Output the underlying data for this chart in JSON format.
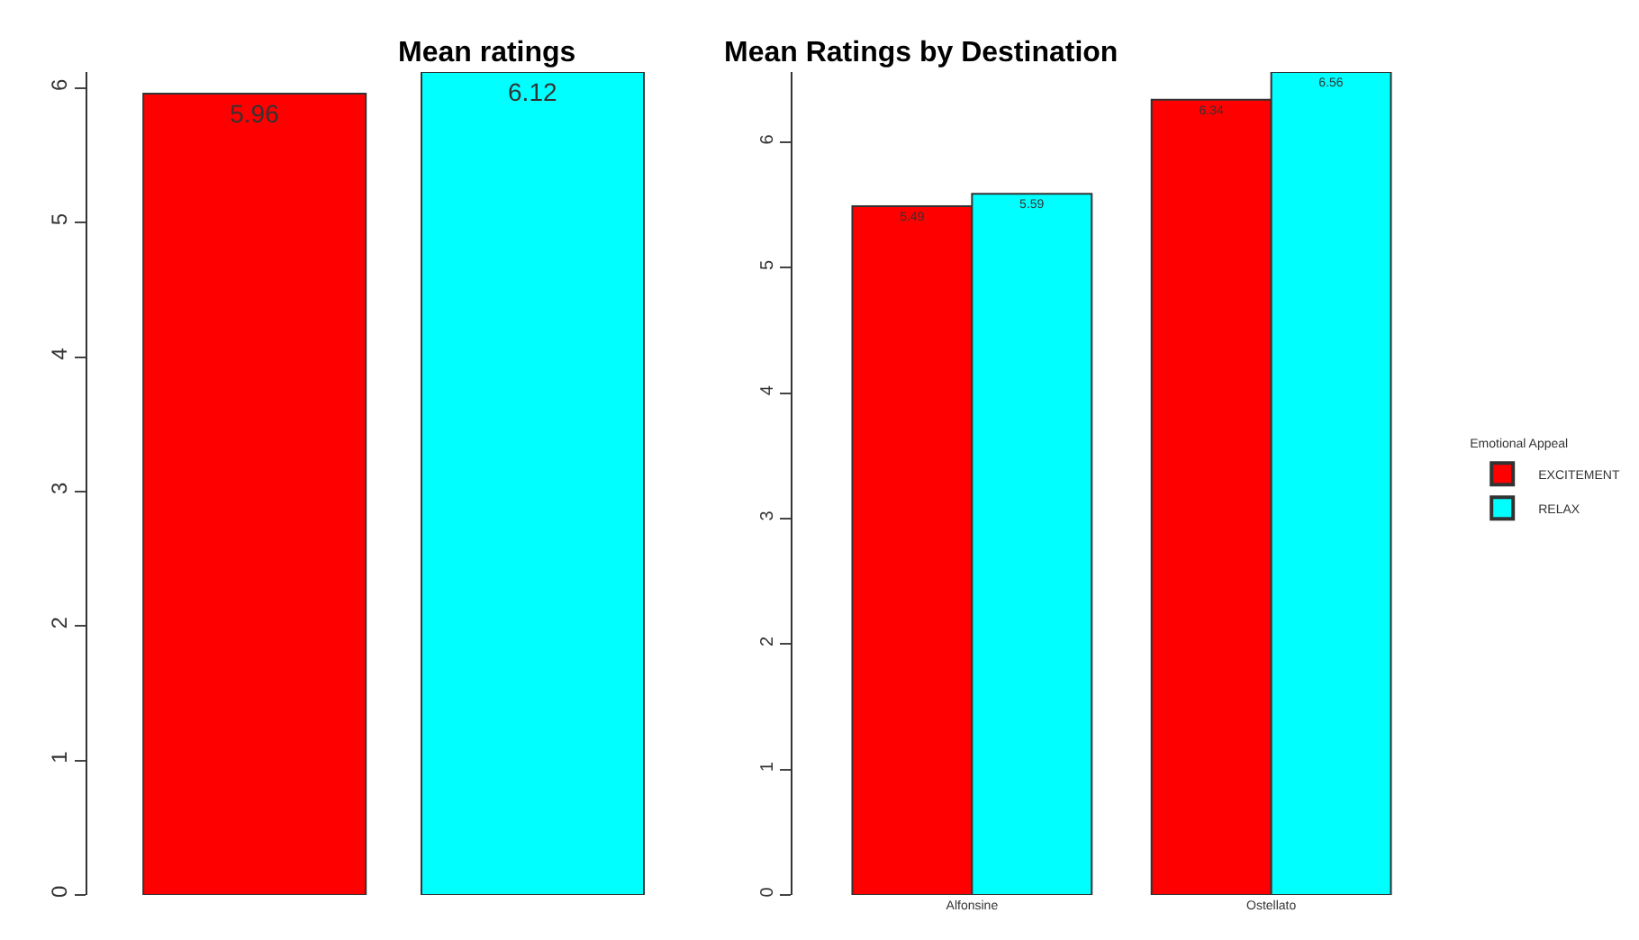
{
  "chart_data": [
    {
      "type": "bar",
      "title": "Mean ratings",
      "categories": [
        null,
        null
      ],
      "values": [
        5.96,
        6.12
      ],
      "colors": [
        "#ff0000",
        "#00ffff"
      ],
      "ylim": [
        0,
        6.12
      ],
      "yticks": [
        0,
        1,
        2,
        3,
        4,
        5,
        6
      ],
      "data_labels": true
    },
    {
      "type": "bar",
      "title": "Mean Ratings by Destination",
      "categories": [
        "Alfonsine",
        "Ostellato"
      ],
      "series": [
        {
          "name": "EXCITEMENT",
          "color": "#ff0000",
          "values": [
            5.49,
            6.34
          ]
        },
        {
          "name": "RELAX",
          "color": "#00ffff",
          "values": [
            5.59,
            6.56
          ]
        }
      ],
      "ylim": [
        0,
        6.56
      ],
      "yticks": [
        0,
        1,
        2,
        3,
        4,
        5,
        6
      ],
      "data_labels": true,
      "legend": "right",
      "legend_title": "Emotional Appeal"
    }
  ]
}
